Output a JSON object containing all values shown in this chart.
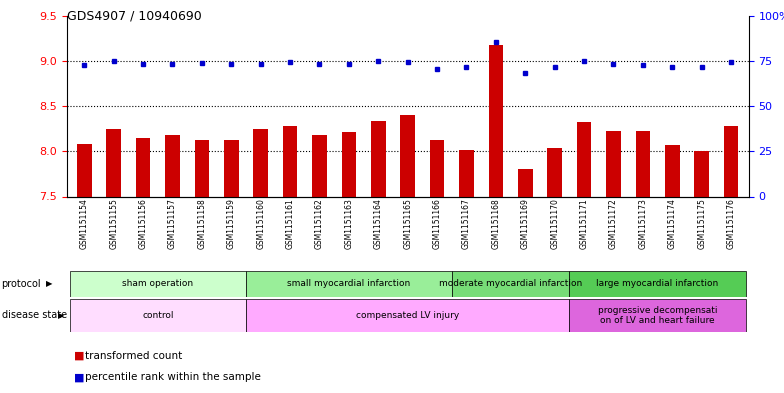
{
  "title": "GDS4907 / 10940690",
  "samples": [
    "GSM1151154",
    "GSM1151155",
    "GSM1151156",
    "GSM1151157",
    "GSM1151158",
    "GSM1151159",
    "GSM1151160",
    "GSM1151161",
    "GSM1151162",
    "GSM1151163",
    "GSM1151164",
    "GSM1151165",
    "GSM1151166",
    "GSM1151167",
    "GSM1151168",
    "GSM1151169",
    "GSM1151170",
    "GSM1151171",
    "GSM1151172",
    "GSM1151173",
    "GSM1151174",
    "GSM1151175",
    "GSM1151176"
  ],
  "bar_values": [
    8.08,
    8.25,
    8.15,
    8.18,
    8.12,
    8.12,
    8.25,
    8.28,
    8.18,
    8.21,
    8.33,
    8.4,
    8.13,
    8.01,
    9.18,
    7.8,
    8.04,
    8.32,
    8.22,
    8.23,
    8.07,
    8.0,
    8.28
  ],
  "dot_values": [
    8.95,
    9.0,
    8.97,
    8.97,
    8.98,
    8.97,
    8.97,
    8.99,
    8.97,
    8.97,
    9.0,
    8.99,
    8.91,
    8.93,
    9.21,
    8.87,
    8.93,
    9.0,
    8.97,
    8.96,
    8.93,
    8.93,
    8.99
  ],
  "bar_color": "#cc0000",
  "dot_color": "#0000cc",
  "ylim_left": [
    7.5,
    9.5
  ],
  "ylim_right": [
    0,
    100
  ],
  "yticks_left": [
    7.5,
    8.0,
    8.5,
    9.0,
    9.5
  ],
  "yticks_right": [
    0,
    25,
    50,
    75,
    100
  ],
  "ytick_labels_right": [
    "0",
    "25",
    "50",
    "75",
    "100%"
  ],
  "hlines": [
    8.0,
    8.5,
    9.0
  ],
  "protocol_groups": [
    {
      "label": "sham operation",
      "start": 0,
      "end": 5
    },
    {
      "label": "small myocardial infarction",
      "start": 6,
      "end": 12
    },
    {
      "label": "moderate myocardial infarction",
      "start": 13,
      "end": 16
    },
    {
      "label": "large myocardial infarction",
      "start": 17,
      "end": 22
    }
  ],
  "protocol_colors": [
    "#ccffcc",
    "#99ee99",
    "#77dd77",
    "#55cc55"
  ],
  "disease_groups": [
    {
      "label": "control",
      "start": 0,
      "end": 5
    },
    {
      "label": "compensated LV injury",
      "start": 6,
      "end": 16
    },
    {
      "label": "progressive decompensati\non of LV and heart failure",
      "start": 17,
      "end": 22
    }
  ],
  "disease_colors": [
    "#ffddff",
    "#ffaaff",
    "#dd66dd"
  ],
  "bg_color": "#ffffff",
  "bar_bottom": 7.5,
  "plot_bg": "#ffffff"
}
